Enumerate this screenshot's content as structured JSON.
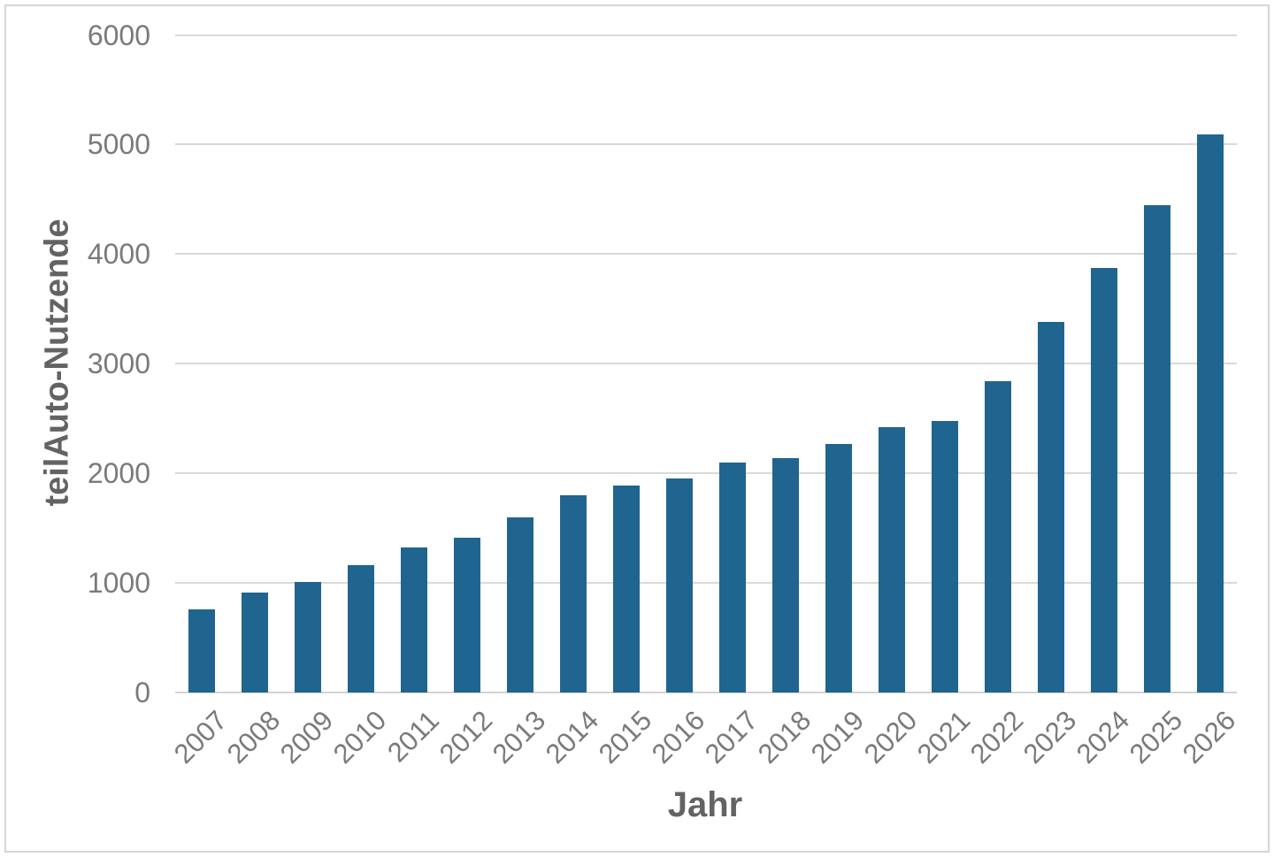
{
  "chart_data": {
    "type": "bar",
    "title": "",
    "xlabel": "Jahr",
    "ylabel": "teilAuto-Nutzende",
    "categories": [
      "2007",
      "2008",
      "2009",
      "2010",
      "2011",
      "2012",
      "2013",
      "2014",
      "2015",
      "2016",
      "2017",
      "2018",
      "2019",
      "2020",
      "2021",
      "2022",
      "2023",
      "2024",
      "2025",
      "2026"
    ],
    "values": [
      760,
      910,
      1010,
      1160,
      1320,
      1410,
      1600,
      1800,
      1890,
      1950,
      2100,
      2140,
      2270,
      2420,
      2480,
      2840,
      3380,
      3870,
      4450,
      5090
    ],
    "ylim": [
      0,
      6000
    ],
    "ytick_step": 1000,
    "yticks": [
      "0",
      "1000",
      "2000",
      "3000",
      "4000",
      "5000",
      "6000"
    ],
    "grid": true,
    "legend_position": "none",
    "bar_color": "#20658f",
    "gridline_color": "#d9d9d9",
    "tick_label_color": "#7a7a7a",
    "axis_title_color": "#636363"
  }
}
